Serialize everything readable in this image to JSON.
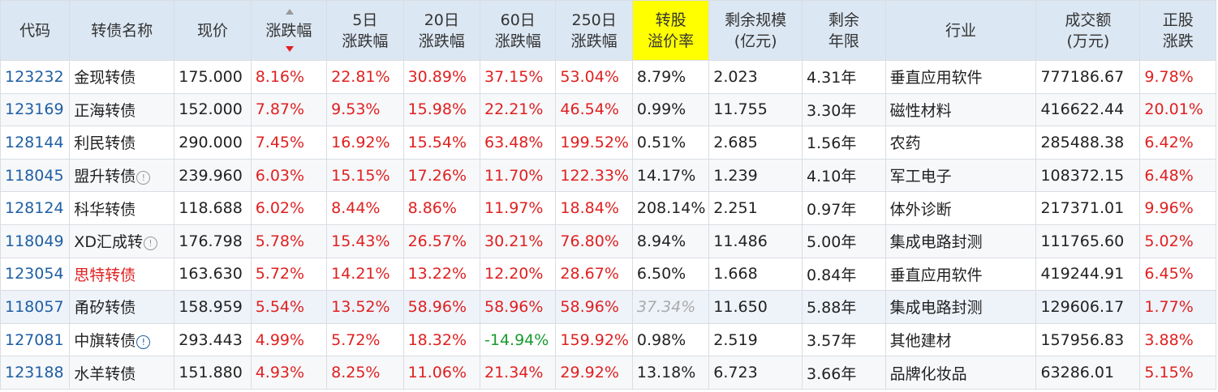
{
  "headers": {
    "code": "代码",
    "name": "转债名称",
    "price": "现价",
    "change": "涨跌幅",
    "d5_1": "5日",
    "d5_2": "涨跌幅",
    "d20_1": "20日",
    "d20_2": "涨跌幅",
    "d60_1": "60日",
    "d60_2": "涨跌幅",
    "d250_1": "250日",
    "d250_2": "涨跌幅",
    "premium_1": "转股",
    "premium_2": "溢价率",
    "scale_1": "剩余规模",
    "scale_2": "(亿元)",
    "years_1": "剩余",
    "years_2": "年限",
    "industry": "行业",
    "volume_1": "成交额",
    "volume_2": "(万元)",
    "stock_1": "正股",
    "stock_2": "涨跌"
  },
  "rows": [
    {
      "code": "123232",
      "name": "金现转债",
      "price": "175.000",
      "change": "8.16%",
      "d5": "22.81%",
      "d20": "30.89%",
      "d60": "37.15%",
      "d250": "53.04%",
      "premium": "8.79%",
      "scale": "2.023",
      "years": "4.31年",
      "industry": "垂直应用软件",
      "volume": "777186.67",
      "stock": "9.78%"
    },
    {
      "code": "123169",
      "name": "正海转债",
      "price": "152.000",
      "change": "7.87%",
      "d5": "9.53%",
      "d20": "15.98%",
      "d60": "22.21%",
      "d250": "46.54%",
      "premium": "0.99%",
      "scale": "11.755",
      "years": "3.30年",
      "industry": "磁性材料",
      "volume": "416622.44",
      "stock": "20.01%"
    },
    {
      "code": "128144",
      "name": "利民转债",
      "price": "290.000",
      "change": "7.45%",
      "d5": "16.92%",
      "d20": "15.54%",
      "d60": "63.48%",
      "d250": "199.52%",
      "premium": "0.51%",
      "scale": "2.685",
      "years": "1.56年",
      "industry": "农药",
      "volume": "285488.38",
      "stock": "6.42%"
    },
    {
      "code": "118045",
      "name": "盟升转债",
      "info": "!",
      "price": "239.960",
      "change": "6.03%",
      "d5": "15.15%",
      "d20": "17.26%",
      "d60": "11.70%",
      "d250": "122.33%",
      "premium": "14.17%",
      "scale": "1.239",
      "years": "4.10年",
      "industry": "军工电子",
      "volume": "108372.15",
      "stock": "6.48%"
    },
    {
      "code": "128124",
      "name": "科华转债",
      "price": "118.688",
      "change": "6.02%",
      "d5": "8.44%",
      "d20": "8.86%",
      "d60": "11.97%",
      "d250": "18.84%",
      "premium": "208.14%",
      "scale": "2.251",
      "years": "0.97年",
      "industry": "体外诊断",
      "volume": "217371.01",
      "stock": "9.96%"
    },
    {
      "code": "118049",
      "name": "XD汇成转",
      "info": "!",
      "price": "176.798",
      "change": "5.78%",
      "d5": "15.43%",
      "d20": "26.57%",
      "d60": "30.21%",
      "d250": "76.80%",
      "premium": "8.94%",
      "scale": "11.486",
      "years": "5.00年",
      "industry": "集成电路封测",
      "volume": "111765.60",
      "stock": "5.02%"
    },
    {
      "code": "123054",
      "name": "思特转债",
      "price": "163.630",
      "change": "5.72%",
      "d5": "14.21%",
      "d20": "13.22%",
      "d60": "12.20%",
      "d250": "28.67%",
      "premium": "6.50%",
      "scale": "1.668",
      "years": "0.84年",
      "industry": "垂直应用软件",
      "volume": "419244.91",
      "stock": "6.45%"
    },
    {
      "code": "118057",
      "name": "甬矽转债",
      "price": "158.959",
      "change": "5.54%",
      "d5": "13.52%",
      "d20": "58.96%",
      "d60": "58.96%",
      "d250": "58.96%",
      "premium": "37.34%",
      "scale": "11.650",
      "years": "5.88年",
      "industry": "集成电路封测",
      "volume": "129606.17",
      "stock": "1.77%"
    },
    {
      "code": "127081",
      "name": "中旗转债",
      "info": "!",
      "price": "293.443",
      "change": "4.99%",
      "d5": "5.72%",
      "d20": "18.32%",
      "d60": "-14.94%",
      "d250": "159.92%",
      "premium": "0.98%",
      "scale": "2.519",
      "years": "3.57年",
      "industry": "其他建材",
      "volume": "157956.83",
      "stock": "3.88%"
    },
    {
      "code": "123188",
      "name": "水羊转债",
      "price": "151.880",
      "change": "4.93%",
      "d5": "8.25%",
      "d20": "11.06%",
      "d60": "21.34%",
      "d250": "29.92%",
      "premium": "13.18%",
      "scale": "6.723",
      "years": "3.66年",
      "industry": "品牌化妆品",
      "volume": "63286.01",
      "stock": "5.15%"
    }
  ],
  "colors": {
    "up": "#e02020",
    "down": "#179b2e",
    "code": "#1f5fa3",
    "highlight": "#ffff00",
    "header_bg": "#dbe7f3"
  }
}
